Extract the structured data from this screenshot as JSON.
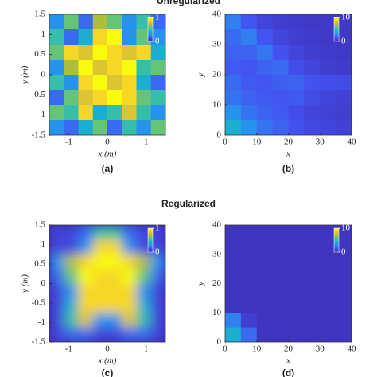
{
  "chart_data": [
    {
      "type": "heatmap",
      "title": "Unregularized",
      "caption": "(a)",
      "xlabel": "x (m)",
      "ylabel": "y (m)",
      "xlim": [
        -1.5,
        1.5
      ],
      "ylim": [
        -1.5,
        1.5
      ],
      "xticks": [
        -1,
        0,
        1
      ],
      "yticks": [
        -1.5,
        -1,
        -0.5,
        0,
        0.5,
        1,
        1.5
      ],
      "clim": [
        0,
        1
      ],
      "cticks": [
        0,
        1
      ],
      "smooth": false,
      "colormap": [
        "#3e26a8",
        "#4352f0",
        "#2a8ff0",
        "#19b5c8",
        "#52c68a",
        "#b7bd36",
        "#f5c82f",
        "#f9fb0e"
      ],
      "z": [
        [
          0.3,
          0.6,
          0.2,
          0.7,
          0.6,
          0.3,
          0.5,
          0.2
        ],
        [
          0.5,
          0.2,
          0.4,
          0.9,
          1,
          0.3,
          0.6,
          0.3
        ],
        [
          0.6,
          0.9,
          0.8,
          1,
          0.9,
          0.8,
          0.9,
          0.4
        ],
        [
          0.3,
          0.7,
          1,
          0.8,
          0.9,
          1,
          0.5,
          0.6
        ],
        [
          0.5,
          0.3,
          0.9,
          1,
          0.8,
          0.9,
          0.4,
          0.2
        ],
        [
          0.2,
          0.6,
          0.8,
          0.9,
          1,
          0.9,
          0.6,
          0.5
        ],
        [
          0.6,
          0.5,
          0.9,
          0.4,
          0.5,
          0.8,
          0.5,
          0.3
        ],
        [
          0.3,
          0.2,
          0.4,
          0.6,
          0.2,
          0.5,
          0.3,
          0.6
        ]
      ]
    },
    {
      "type": "heatmap",
      "caption": "(b)",
      "xlabel": "x",
      "ylabel": "y",
      "xlim": [
        0,
        40
      ],
      "ylim": [
        0,
        40
      ],
      "xticks": [
        0,
        10,
        20,
        30,
        40
      ],
      "yticks": [
        0,
        10,
        20,
        30,
        40
      ],
      "clim": [
        0,
        10
      ],
      "cticks": [
        0,
        10
      ],
      "smooth": false,
      "colormap": [
        "#3e26a8",
        "#4352f0",
        "#2a8ff0",
        "#19b5c8",
        "#52c68a",
        "#b7bd36",
        "#f5c82f",
        "#f9fb0e"
      ],
      "z": [
        [
          2.5,
          1.5,
          1,
          0.8,
          0.7,
          0.6,
          0.6,
          0.6
        ],
        [
          2,
          2.5,
          1.5,
          1,
          0.8,
          0.7,
          0.6,
          0.6
        ],
        [
          1.8,
          1.8,
          2.3,
          1.4,
          1,
          0.8,
          0.7,
          0.6
        ],
        [
          1.6,
          1.5,
          1.8,
          2,
          1.3,
          1,
          0.8,
          0.7
        ],
        [
          2,
          1.6,
          1.5,
          1.7,
          1.8,
          1.4,
          1.3,
          1.2
        ],
        [
          2.2,
          1.8,
          1.6,
          1.5,
          1.6,
          1.2,
          1,
          0.9
        ],
        [
          3,
          2.2,
          1.8,
          1.6,
          1.3,
          1,
          0.9,
          0.8
        ],
        [
          4,
          3,
          2.2,
          1.8,
          1.4,
          1.1,
          1,
          0.9
        ]
      ]
    },
    {
      "type": "heatmap",
      "title": "Regularized",
      "caption": "(c)",
      "xlabel": "x (m)",
      "ylabel": "y (m)",
      "xlim": [
        -1.5,
        1.5
      ],
      "ylim": [
        -1.5,
        1.5
      ],
      "xticks": [
        -1,
        0,
        1
      ],
      "yticks": [
        -1.5,
        -1,
        -0.5,
        0,
        0.5,
        1,
        1.5
      ],
      "clim": [
        0,
        1
      ],
      "cticks": [
        0,
        1
      ],
      "smooth": true,
      "colormap": [
        "#3e26a8",
        "#4352f0",
        "#2a8ff0",
        "#19b5c8",
        "#52c68a",
        "#b7bd36",
        "#f5c82f",
        "#f9fb0e"
      ],
      "z": [
        [
          0.1,
          0.1,
          0.2,
          0.5,
          0.5,
          0.2,
          0.1,
          0.1
        ],
        [
          0.1,
          0.1,
          0.3,
          0.9,
          0.9,
          0.3,
          0.1,
          0.1
        ],
        [
          0.3,
          0.7,
          0.9,
          1,
          1,
          0.9,
          0.7,
          0.3
        ],
        [
          0.2,
          0.6,
          1,
          0.9,
          0.9,
          1,
          0.6,
          0.2
        ],
        [
          0.1,
          0.3,
          0.9,
          0.9,
          0.9,
          0.9,
          0.3,
          0.1
        ],
        [
          0.1,
          0.4,
          0.9,
          0.9,
          0.9,
          0.9,
          0.4,
          0.1
        ],
        [
          0.1,
          0.5,
          0.8,
          0.3,
          0.3,
          0.8,
          0.5,
          0.1
        ],
        [
          0.1,
          0.2,
          0.2,
          0.1,
          0.1,
          0.2,
          0.2,
          0.1
        ]
      ]
    },
    {
      "type": "heatmap",
      "caption": "(d)",
      "xlabel": "x",
      "ylabel": "y",
      "xlim": [
        0,
        40
      ],
      "ylim": [
        0,
        40
      ],
      "xticks": [
        0,
        10,
        20,
        30,
        40
      ],
      "yticks": [
        0,
        10,
        20,
        30,
        40
      ],
      "clim": [
        0,
        10
      ],
      "cticks": [
        0,
        10
      ],
      "smooth": false,
      "colormap": [
        "#3e26a8",
        "#4352f0",
        "#2a8ff0",
        "#19b5c8",
        "#52c68a",
        "#b7bd36",
        "#f5c82f",
        "#f9fb0e"
      ],
      "z": [
        [
          0.5,
          0.5,
          0.5,
          0.5,
          0.5,
          0.5,
          0.5,
          0.5
        ],
        [
          0.5,
          0.5,
          0.5,
          0.5,
          0.5,
          0.5,
          0.5,
          0.5
        ],
        [
          0.5,
          0.5,
          0.5,
          0.5,
          0.5,
          0.5,
          0.5,
          0.5
        ],
        [
          0.5,
          0.5,
          0.5,
          0.5,
          0.5,
          0.5,
          0.5,
          0.5
        ],
        [
          0.5,
          0.5,
          0.5,
          0.5,
          0.5,
          0.5,
          0.5,
          0.5
        ],
        [
          0.5,
          0.5,
          0.5,
          0.5,
          0.5,
          0.5,
          0.5,
          0.5
        ],
        [
          2.5,
          0.8,
          0.5,
          0.5,
          0.5,
          0.5,
          0.5,
          0.5
        ],
        [
          4,
          2,
          0.5,
          0.5,
          0.5,
          0.5,
          0.5,
          0.5
        ]
      ]
    }
  ]
}
